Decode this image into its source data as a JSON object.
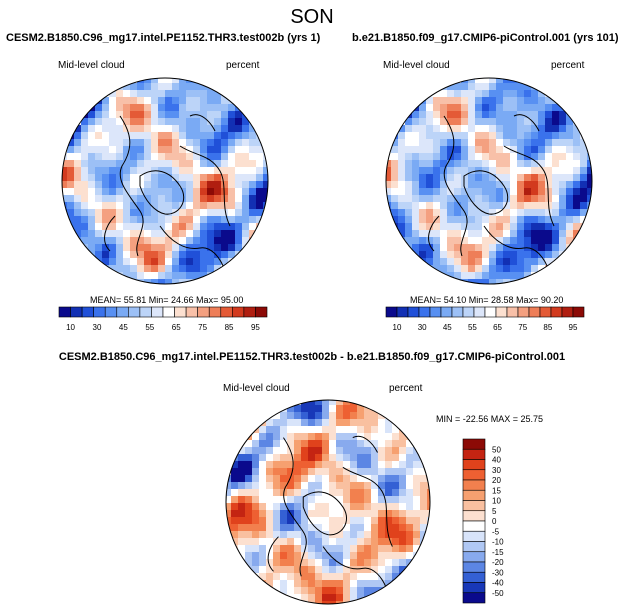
{
  "figure": {
    "title": "SON"
  },
  "chart_data": [
    {
      "type": "heatmap",
      "projection": "north-polar-stereographic",
      "title": "CESM2.B1850.C96_mg17.intel.PE1152.THR3.test002b (yrs 1)",
      "variable": "Mid-level cloud",
      "units": "percent",
      "stats_text": "MEAN=  55.81  Min=  24.66  Max=  95.00",
      "mean": 55.81,
      "min": 24.66,
      "max": 95.0,
      "colorbar": {
        "orientation": "horizontal",
        "levels": [
          "10",
          "30",
          "45",
          "55",
          "65",
          "75",
          "85",
          "95"
        ],
        "colors": [
          "#0a0a8c",
          "#1230b4",
          "#2050d8",
          "#3a72ec",
          "#5890f2",
          "#7aaaf4",
          "#9cc0f6",
          "#bcd4f8",
          "#dce6fa",
          "#ffffff",
          "#fce0d0",
          "#f8c0a8",
          "#f4a080",
          "#ee7e58",
          "#e45a36",
          "#d23a1e",
          "#b01e10",
          "#8c0a06"
        ]
      }
    },
    {
      "type": "heatmap",
      "projection": "north-polar-stereographic",
      "title": "b.e21.B1850.f09_g17.CMIP6-piControl.001 (yrs 101)",
      "variable": "Mid-level cloud",
      "units": "percent",
      "stats_text": "MEAN=  54.10  Min=  28.58  Max=  90.20",
      "mean": 54.1,
      "min": 28.58,
      "max": 90.2,
      "colorbar": {
        "orientation": "horizontal",
        "levels": [
          "10",
          "30",
          "45",
          "55",
          "65",
          "75",
          "85",
          "95"
        ],
        "colors": [
          "#0a0a8c",
          "#1230b4",
          "#2050d8",
          "#3a72ec",
          "#5890f2",
          "#7aaaf4",
          "#9cc0f6",
          "#bcd4f8",
          "#dce6fa",
          "#ffffff",
          "#fce0d0",
          "#f8c0a8",
          "#f4a080",
          "#ee7e58",
          "#e45a36",
          "#d23a1e",
          "#b01e10",
          "#8c0a06"
        ]
      }
    },
    {
      "type": "heatmap",
      "projection": "north-polar-stereographic",
      "title": "CESM2.B1850.C96_mg17.intel.PE1152.THR3.test002b - b.e21.B1850.f09_g17.CMIP6-piControl.001",
      "variable": "Mid-level cloud",
      "units": "percent",
      "stats_text": "MIN = -22.56 MAX =  25.75",
      "min": -22.56,
      "max": 25.75,
      "colorbar": {
        "orientation": "vertical",
        "levels": [
          "50",
          "40",
          "30",
          "20",
          "15",
          "10",
          "5",
          "0",
          "-5",
          "-10",
          "-15",
          "-20",
          "-30",
          "-40",
          "-50"
        ],
        "colors": [
          "#8c0a06",
          "#c42412",
          "#e0421c",
          "#ee6032",
          "#f2804e",
          "#f6a070",
          "#f9c0a0",
          "#fce0d0",
          "#ffffff",
          "#d8e4fa",
          "#b0c8f4",
          "#88aaee",
          "#5c86e4",
          "#3460d4",
          "#1838b8",
          "#0a0a8c"
        ]
      }
    }
  ]
}
